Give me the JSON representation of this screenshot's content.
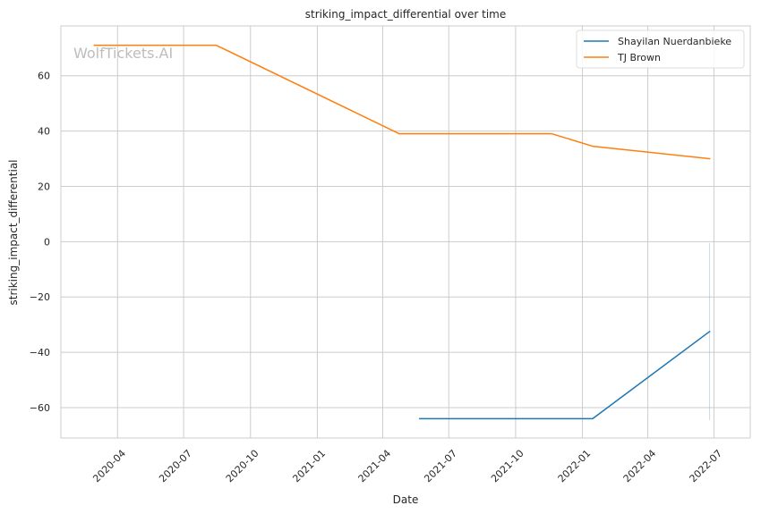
{
  "chart_data": {
    "type": "line",
    "title": "striking_impact_differential over time",
    "xlabel": "Date",
    "ylabel": "striking_impact_differential",
    "watermark": "WolfTickets.AI",
    "x_type": "date",
    "xlim": [
      "2020-01-14",
      "2022-08-20"
    ],
    "ylim": [
      -71,
      78
    ],
    "x_ticks": [
      "2020-04",
      "2020-07",
      "2020-10",
      "2021-01",
      "2021-04",
      "2021-07",
      "2021-10",
      "2022-01",
      "2022-04",
      "2022-07"
    ],
    "y_ticks": [
      -60,
      -40,
      -20,
      0,
      20,
      40,
      60
    ],
    "y_tick_labels": [
      "−60",
      "−40",
      "−20",
      "0",
      "20",
      "40",
      "60"
    ],
    "grid": true,
    "legend_position": "top-right",
    "series": [
      {
        "name": "Shayilan Nuerdanbieke",
        "color": "#1f77b4",
        "points": [
          {
            "x": "2021-05-22",
            "y": -64
          },
          {
            "x": "2022-01-15",
            "y": -64
          },
          {
            "x": "2022-06-25",
            "y": -32.5
          }
        ],
        "band": {
          "x": "2022-06-25",
          "y_low": -64.5,
          "y_high": -0.5
        }
      },
      {
        "name": "TJ Brown",
        "color": "#ff7f0e",
        "points": [
          {
            "x": "2020-02-29",
            "y": 71
          },
          {
            "x": "2020-08-15",
            "y": 71
          },
          {
            "x": "2021-04-24",
            "y": 39
          },
          {
            "x": "2021-11-20",
            "y": 39
          },
          {
            "x": "2022-01-15",
            "y": 34.5
          },
          {
            "x": "2022-06-25",
            "y": 30
          }
        ]
      }
    ]
  }
}
